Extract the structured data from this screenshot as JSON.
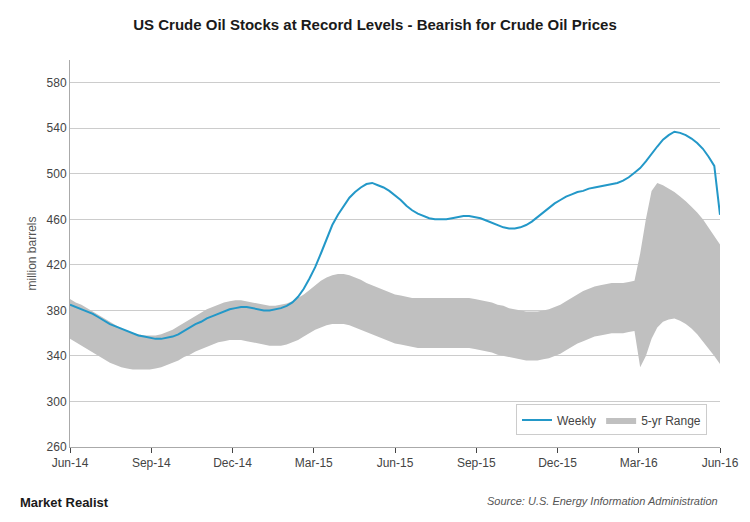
{
  "chart_data": {
    "type": "line",
    "title": "US Crude Oil Stocks at Record Levels - Bearish for Crude Oil Prices",
    "ylabel": "million barrels",
    "annotations": [
      "Market Realist",
      "Source: U.S. Energy Information Administration"
    ],
    "xlim": [
      0,
      114
    ],
    "xticks": [
      {
        "value": 0,
        "label": "Jun-14"
      },
      {
        "value": 14.25,
        "label": "Sep-14"
      },
      {
        "value": 28.5,
        "label": "Dec-14"
      },
      {
        "value": 42.75,
        "label": "Mar-15"
      },
      {
        "value": 57,
        "label": "Jun-15"
      },
      {
        "value": 71.25,
        "label": "Sep-15"
      },
      {
        "value": 85.5,
        "label": "Dec-15"
      },
      {
        "value": 99.75,
        "label": "Mar-16"
      },
      {
        "value": 114,
        "label": "Jun-16"
      }
    ],
    "ylim": [
      260,
      600
    ],
    "yticks": [
      260,
      300,
      340,
      380,
      420,
      460,
      500,
      540,
      580
    ],
    "grid": true,
    "legend": "lower right",
    "series": [
      {
        "name": "5-yr Range",
        "type": "range",
        "color": "#c0c0c0",
        "upper": [
          390,
          387,
          385,
          382,
          379,
          376,
          373,
          370,
          367,
          364,
          362,
          360,
          359,
          358,
          358,
          358,
          359,
          361,
          363,
          366,
          369,
          372,
          375,
          378,
          381,
          383,
          385,
          387,
          388,
          389,
          389,
          388,
          387,
          386,
          385,
          384,
          384,
          385,
          386,
          388,
          391,
          394,
          398,
          402,
          406,
          409,
          411,
          412,
          412,
          411,
          409,
          407,
          404,
          402,
          400,
          398,
          396,
          394,
          393,
          392,
          391,
          391,
          391,
          391,
          391,
          391,
          391,
          391,
          391,
          391,
          391,
          390,
          389,
          388,
          387,
          385,
          384,
          382,
          381,
          380,
          379,
          379,
          379,
          380,
          381,
          383,
          385,
          388,
          391,
          394,
          397,
          399,
          401,
          402,
          403,
          404,
          404,
          404,
          405,
          406,
          430,
          460,
          485,
          492,
          490,
          487,
          484,
          480,
          476,
          471,
          466,
          460,
          453,
          446,
          438
        ],
        "lower": [
          355,
          352,
          349,
          346,
          343,
          340,
          337,
          334,
          332,
          330,
          329,
          328,
          328,
          328,
          328,
          329,
          330,
          332,
          334,
          336,
          339,
          341,
          344,
          346,
          348,
          350,
          352,
          353,
          354,
          354,
          354,
          353,
          352,
          351,
          350,
          349,
          349,
          349,
          350,
          352,
          354,
          357,
          360,
          363,
          365,
          367,
          368,
          368,
          368,
          367,
          365,
          363,
          361,
          359,
          357,
          355,
          353,
          351,
          350,
          349,
          348,
          347,
          347,
          347,
          347,
          347,
          347,
          347,
          347,
          347,
          347,
          346,
          345,
          344,
          343,
          341,
          340,
          339,
          338,
          337,
          336,
          336,
          336,
          337,
          338,
          340,
          342,
          345,
          348,
          351,
          353,
          355,
          357,
          358,
          359,
          360,
          360,
          360,
          361,
          362,
          330,
          340,
          355,
          365,
          370,
          372,
          373,
          371,
          368,
          364,
          359,
          353,
          347,
          340,
          333
        ]
      },
      {
        "name": "Weekly",
        "type": "line",
        "color": "#2398c8",
        "values": [
          385,
          383,
          381,
          379,
          377,
          374,
          371,
          368,
          366,
          364,
          362,
          360,
          358,
          357,
          356,
          355,
          355,
          356,
          357,
          359,
          362,
          365,
          368,
          370,
          373,
          375,
          377,
          379,
          381,
          382,
          383,
          383,
          382,
          381,
          380,
          380,
          381,
          382,
          384,
          387,
          392,
          399,
          408,
          418,
          430,
          443,
          455,
          464,
          472,
          479,
          484,
          488,
          491,
          492,
          490,
          488,
          485,
          481,
          477,
          472,
          468,
          465,
          463,
          461,
          460,
          460,
          460,
          461,
          462,
          463,
          463,
          462,
          461,
          459,
          457,
          455,
          453,
          452,
          452,
          453,
          455,
          458,
          462,
          466,
          470,
          474,
          477,
          480,
          482,
          484,
          485,
          487,
          488,
          489,
          490,
          491,
          492,
          494,
          497,
          501,
          505,
          511,
          518,
          524,
          530,
          534,
          537,
          536,
          534,
          531,
          527,
          522,
          515,
          507,
          464
        ]
      }
    ]
  }
}
